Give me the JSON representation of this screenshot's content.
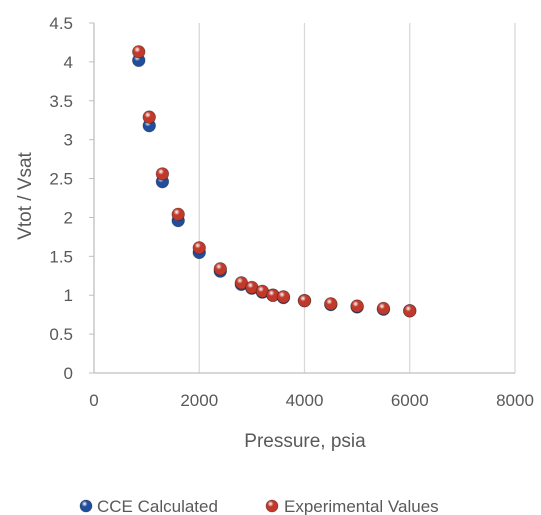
{
  "chart_data": {
    "type": "scatter",
    "title": "",
    "xlabel": "Pressure, psia",
    "ylabel": "Vtot / Vsat",
    "xlim": [
      0,
      8000
    ],
    "ylim": [
      0,
      4.5
    ],
    "x_ticks": [
      "0",
      "2000",
      "4000",
      "6000",
      "8000"
    ],
    "y_ticks": [
      "0",
      "0.5",
      "1",
      "1.5",
      "2",
      "2.5",
      "3",
      "3.5",
      "4",
      "4.5"
    ],
    "grid": "vertical",
    "legend_position": "bottom",
    "series": [
      {
        "name": "CCE Calculated",
        "color": "#1f4e9c",
        "points": [
          {
            "x": 850,
            "y": 4.02
          },
          {
            "x": 1050,
            "y": 3.18
          },
          {
            "x": 1300,
            "y": 2.46
          },
          {
            "x": 1600,
            "y": 1.96
          },
          {
            "x": 2000,
            "y": 1.55
          },
          {
            "x": 2400,
            "y": 1.31
          },
          {
            "x": 2800,
            "y": 1.14
          },
          {
            "x": 3000,
            "y": 1.09
          },
          {
            "x": 3200,
            "y": 1.04
          },
          {
            "x": 3400,
            "y": 1.0
          },
          {
            "x": 3600,
            "y": 0.97
          },
          {
            "x": 4000,
            "y": 0.93
          },
          {
            "x": 4500,
            "y": 0.88
          },
          {
            "x": 5000,
            "y": 0.85
          },
          {
            "x": 5500,
            "y": 0.82
          },
          {
            "x": 6000,
            "y": 0.8
          }
        ]
      },
      {
        "name": "Experimental Values",
        "color": "#c0392b",
        "points": [
          {
            "x": 850,
            "y": 4.13
          },
          {
            "x": 1050,
            "y": 3.29
          },
          {
            "x": 1300,
            "y": 2.56
          },
          {
            "x": 1600,
            "y": 2.04
          },
          {
            "x": 2000,
            "y": 1.61
          },
          {
            "x": 2400,
            "y": 1.34
          },
          {
            "x": 2800,
            "y": 1.16
          },
          {
            "x": 3000,
            "y": 1.1
          },
          {
            "x": 3200,
            "y": 1.05
          },
          {
            "x": 3400,
            "y": 1.0
          },
          {
            "x": 3600,
            "y": 0.98
          },
          {
            "x": 4000,
            "y": 0.93
          },
          {
            "x": 4500,
            "y": 0.89
          },
          {
            "x": 5000,
            "y": 0.86
          },
          {
            "x": 5500,
            "y": 0.83
          },
          {
            "x": 6000,
            "y": 0.8
          }
        ]
      }
    ]
  }
}
